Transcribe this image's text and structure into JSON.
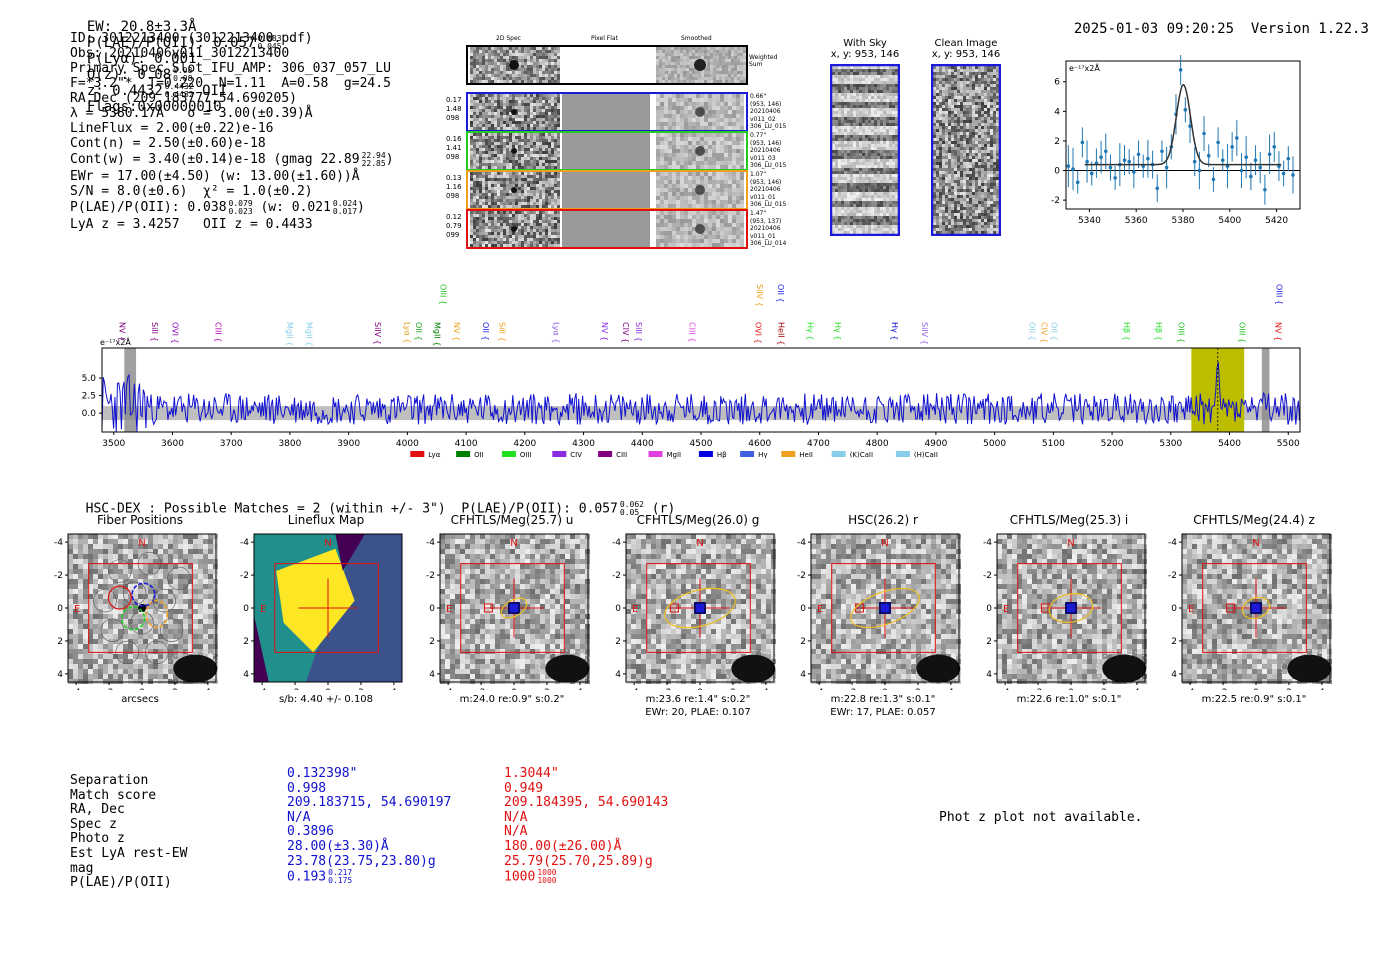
{
  "header": {
    "ew": "EW: 20.8±3.3Å",
    "plae_label": "P(LAE)/P(OII): 0.057",
    "plae_hi": "0.083",
    "plae_lo": "0.045",
    "plya": "P(Lyα): 0.001",
    "qz_label": "Q(z): 0.08",
    "qz_hi": "0.08",
    "qz_lo": "0.08",
    "z_label": "z: 0.4432",
    "z_hi": "0.4432",
    "z_lo": "0.4432",
    "z_line": "OII",
    "flags": "Flags:0x00000010",
    "datetime": "2025-01-03 09:20:25",
    "version": "Version 1.22.3"
  },
  "info": {
    "l1": "ID: 3012213400 (3012213400.pdf)",
    "l2": "Obs: 20210406v011_3012213400",
    "l3": "Primary Spec_Slot_IFU_AMP: 306_037_057_LU",
    "l4": "F=*3.2\"*  T=0.220  N=1.11  A=0.58  g=24.5",
    "l5": "RA,Dec (209.183777,54.690205)",
    "l6": "λ = 5380.17Å   σ = 3.00(±0.39)Å",
    "l7": "LineFlux = 2.00(±0.22)e-16",
    "l8": "Cont(n) = 2.50(±0.60)e-18",
    "l9": "Cont(w) = 3.40(±0.14)e-18 (gmag 22.89",
    "l9_hi": "22.94",
    "l9_lo": "22.85",
    "l9_end": ")",
    "l10": "EWr = 17.00(±4.50) (w: 13.00(±1.60))Å",
    "l11": "S/N = 8.0(±0.6)  χ² = 1.0(±0.2)",
    "l12": "P(LAE)/P(OII): 0.038",
    "l12_hi": "0.079",
    "l12_lo": "0.023",
    "l12_w": "(w: 0.021",
    "l12_whi": "0.024",
    "l12_wlo": "0.017",
    "l12_end": ")",
    "l13": "LyA z = 3.4257   OII z = 0.4433"
  },
  "cutouts": {
    "col_2d": "2D Spec",
    "col_flat": "Pixel Flat",
    "col_smooth": "Smoothed",
    "weighted": "Weighted Sum",
    "rows": [
      {
        "l": "0.17",
        "m": "1.48",
        "r": "098",
        "i1": "0.66\"",
        "i2": "(953, 146)",
        "i3": "20210406",
        "i4": "v011_02",
        "i5": "306_LU_015",
        "color": "#1a1ad8"
      },
      {
        "l": "0.16",
        "m": "1.41",
        "r": "098",
        "i1": "0.77\"",
        "i2": "(953, 146)",
        "i3": "20210406",
        "i4": "v011_03",
        "i5": "306_LU_015",
        "color": "#22cc22"
      },
      {
        "l": "0.13",
        "m": "1.16",
        "r": "098",
        "i1": "1.07\"",
        "i2": "(953, 146)",
        "i3": "20210406",
        "i4": "v011_01",
        "i5": "306_LU_015",
        "color": "#f0a020"
      },
      {
        "l": "0.12",
        "m": "0.79",
        "r": "099",
        "i1": "1.47\"",
        "i2": "(953, 137)",
        "i3": "20210406",
        "i4": "v011_01",
        "i5": "306_LU_014",
        "color": "#e01010"
      }
    ],
    "with_sky": "With Sky",
    "with_sky_xy": "x, y: 953, 146",
    "clean": "Clean Image",
    "clean_xy": "x, y: 953, 146"
  },
  "colors": {
    "blue": "#1010d0",
    "red": "#e01010",
    "olive": "#bdbd00",
    "gray_band": "#bfbfbf"
  },
  "chart_data": [
    {
      "type": "scatter",
      "title": "",
      "ylabel": "e⁻¹⁷x2Å",
      "xlim": [
        5330,
        5430
      ],
      "ylim": [
        -2.6,
        7.4
      ],
      "xticks": [
        5340,
        5360,
        5380,
        5400,
        5420
      ],
      "yticks": [
        -2,
        0,
        2,
        4,
        6
      ],
      "x": [
        5331,
        5333,
        5335,
        5337,
        5339,
        5341,
        5343,
        5345,
        5347,
        5349,
        5351,
        5353,
        5355,
        5357,
        5359,
        5361,
        5363,
        5365,
        5367,
        5369,
        5371,
        5373,
        5375,
        5377,
        5379,
        5381,
        5383,
        5385,
        5387,
        5389,
        5391,
        5393,
        5395,
        5397,
        5399,
        5401,
        5403,
        5405,
        5407,
        5409,
        5411,
        5413,
        5415,
        5417,
        5419,
        5421,
        5423,
        5425,
        5427
      ],
      "values": [
        0.3,
        0.1,
        -0.8,
        1.9,
        0.6,
        -0.2,
        0.5,
        0.9,
        1.3,
        0.2,
        -0.5,
        0.4,
        0.7,
        0.6,
        -0.1,
        1.1,
        0.3,
        0.8,
        0.4,
        -1.2,
        1.3,
        0.2,
        1.6,
        3.8,
        6.8,
        4.1,
        3.0,
        0.6,
        0.0,
        2.5,
        1.0,
        -0.6,
        1.9,
        0.7,
        0.3,
        1.6,
        2.2,
        0.0,
        0.9,
        -0.4,
        0.7,
        0.2,
        -1.3,
        1.1,
        1.6,
        0.3,
        -0.2,
        0.8,
        -0.3
      ],
      "fit": {
        "center": 5380.17,
        "sigma": 3.0,
        "amp": 5.4,
        "base": 0.4
      }
    },
    {
      "type": "line",
      "title": "",
      "ylabel": "e⁻¹⁷x2Å",
      "xlim": [
        3480,
        5520
      ],
      "ylim": [
        -2.7,
        9.3
      ],
      "xticks": [
        3500,
        3600,
        3700,
        3800,
        3900,
        4000,
        4100,
        4200,
        4300,
        4400,
        4500,
        4600,
        4700,
        4800,
        4900,
        5000,
        5100,
        5200,
        5300,
        5400,
        5500
      ],
      "yticks": [
        0.0,
        2.5,
        5.0
      ],
      "ytick_labels": [
        "0.0",
        "2.5",
        "5.0"
      ],
      "highlight": [
        5335,
        5425
      ],
      "peak_line": 5380,
      "hatched": [
        [
          3518,
          3538
        ],
        [
          5455,
          5468
        ]
      ],
      "line_markers": [
        {
          "label": "NV",
          "x": 3505,
          "c": "#800080",
          "row": 1
        },
        {
          "label": "SiII",
          "x": 3560,
          "c": "#800080",
          "row": 1
        },
        {
          "label": "OVI",
          "x": 3595,
          "c": "#9000c0",
          "row": 1
        },
        {
          "label": "CIII",
          "x": 3668,
          "c": "#b000b0",
          "row": 1
        },
        {
          "label": "MgII",
          "x": 3790,
          "c": "#87ceeb",
          "row": 1
        },
        {
          "label": "MgII",
          "x": 3823,
          "c": "#87ceeb",
          "row": 1
        },
        {
          "label": "SiIV",
          "x": 3940,
          "c": "#800080",
          "row": 1
        },
        {
          "label": "Lyα",
          "x": 3990,
          "c": "#e0a020",
          "row": 1
        },
        {
          "label": "OII",
          "x": 4010,
          "c": "#20a020",
          "row": 1
        },
        {
          "label": "MgII",
          "x": 4041,
          "c": "#008000",
          "row": 1
        },
        {
          "label": "OIII",
          "x": 4051,
          "c": "#20c020",
          "row": 0
        },
        {
          "label": "NV",
          "x": 4074,
          "c": "#f0a020",
          "row": 1
        },
        {
          "label": "OII",
          "x": 4124,
          "c": "#2020e0",
          "row": 1
        },
        {
          "label": "SiII",
          "x": 4152,
          "c": "#f0a020",
          "row": 1
        },
        {
          "label": "Lyα",
          "x": 4244,
          "c": "#9060e0",
          "row": 1
        },
        {
          "label": "NV",
          "x": 4326,
          "c": "#8a2be2",
          "row": 1
        },
        {
          "label": "CIV",
          "x": 4362,
          "c": "#800080",
          "row": 1
        },
        {
          "label": "SiII",
          "x": 4384,
          "c": "#8a2be2",
          "row": 1
        },
        {
          "label": "CIII",
          "x": 4475,
          "c": "#e040e0",
          "row": 1
        },
        {
          "label": "SiIV",
          "x": 4590,
          "c": "#f0a020",
          "row": 0
        },
        {
          "label": "OVI",
          "x": 4588,
          "c": "#e01010",
          "row": 1
        },
        {
          "label": "OII",
          "x": 4626,
          "c": "#2020e0",
          "row": 0
        },
        {
          "label": "HeII",
          "x": 4627,
          "c": "#a00000",
          "row": 1
        },
        {
          "label": "Hγ",
          "x": 4676,
          "c": "#20e020",
          "row": 1
        },
        {
          "label": "Hγ",
          "x": 4723,
          "c": "#20e020",
          "row": 1
        },
        {
          "label": "Hγ",
          "x": 4820,
          "c": "#0000c0",
          "row": 1
        },
        {
          "label": "SiIV",
          "x": 4871,
          "c": "#9060e0",
          "row": 1
        },
        {
          "label": "OII",
          "x": 5054,
          "c": "#87ceeb",
          "row": 1
        },
        {
          "label": "CIV",
          "x": 5075,
          "c": "#f0a020",
          "row": 1
        },
        {
          "label": "OII",
          "x": 5092,
          "c": "#87ceeb",
          "row": 1
        },
        {
          "label": "Hβ",
          "x": 5215,
          "c": "#20e020",
          "row": 1
        },
        {
          "label": "Hβ",
          "x": 5270,
          "c": "#20e020",
          "row": 1
        },
        {
          "label": "OIII",
          "x": 5308,
          "c": "#20c020",
          "row": 1
        },
        {
          "label": "OIII",
          "x": 5412,
          "c": "#20c020",
          "row": 1
        },
        {
          "label": "NV",
          "x": 5473,
          "c": "#e01010",
          "row": 1
        },
        {
          "label": "OIII",
          "x": 5475,
          "c": "#2020e0",
          "row": 0
        }
      ],
      "legend": [
        {
          "label": "Lyα",
          "c": "#e01010"
        },
        {
          "label": "OII",
          "c": "#008000"
        },
        {
          "label": "OIII",
          "c": "#20e020"
        },
        {
          "label": "CIV",
          "c": "#8a2be2"
        },
        {
          "label": "CIII",
          "c": "#800080"
        },
        {
          "label": "MgII",
          "c": "#e040e0"
        },
        {
          "label": "Hβ",
          "c": "#0000e0"
        },
        {
          "label": "Hγ",
          "c": "#4060e0"
        },
        {
          "label": "HeII",
          "c": "#f0a020"
        },
        {
          "label": "(K)CaII",
          "c": "#87ceeb"
        },
        {
          "label": "(H)CaII",
          "c": "#87ceeb"
        }
      ]
    }
  ],
  "hsc": {
    "title": "HSC-DEX : Possible Matches = 2 (within +/- 3\")  P(LAE)/P(OII): 0.057",
    "hi": "0.062",
    "lo": "0.05",
    "tail": "(r)"
  },
  "panels": [
    {
      "title": "Fiber Positions",
      "sub1": "arcsecs",
      "sub2": "",
      "kind": "fiber"
    },
    {
      "title": "Lineflux Map",
      "sub1": "s/b: 4.40 +/- 0.108",
      "sub2": "",
      "kind": "flux"
    },
    {
      "title": "CFHTLS/Meg(25.7) u",
      "sub1": "m:24.0  re:0.9\"  s:0.2\"",
      "sub2": "",
      "kind": "img",
      "ell": [
        14,
        8,
        -30
      ]
    },
    {
      "title": "CFHTLS/Meg(26.0) g",
      "sub1": "m:23.6  re:1.4\"  s:0.2\"",
      "sub2": "EWr: 20, PLAE: 0.107",
      "kind": "img",
      "ell": [
        36,
        18,
        -15
      ]
    },
    {
      "title": "HSC(26.2) r",
      "sub1": "m:22.8  re:1.3\"  s:0.1\"",
      "sub2": "EWr: 17, PLAE: 0.057",
      "kind": "img",
      "ell": [
        36,
        16,
        -20
      ]
    },
    {
      "title": "CFHTLS/Meg(25.3) i",
      "sub1": "m:22.6  re:1.0\"  s:0.1\"",
      "sub2": "",
      "kind": "img",
      "ell": [
        22,
        14,
        -10
      ]
    },
    {
      "title": "CFHTLS/Meg(24.4) z",
      "sub1": "m:22.5  re:0.9\"  s:0.1\"",
      "sub2": "",
      "kind": "img",
      "ell": [
        14,
        10,
        -20
      ]
    }
  ],
  "panel_axes": {
    "ticks": [
      "-4",
      "-2",
      "0",
      "2",
      "4"
    ],
    "north": "N",
    "east": "E"
  },
  "matches": {
    "labels": [
      "Separation",
      "Match score",
      "RA, Dec",
      "Spec z",
      "Photo z",
      "Est LyA rest-EW",
      "mag",
      "P(LAE)/P(OII)"
    ],
    "m1": [
      "0.132398\"",
      "0.998",
      "209.183715, 54.690197",
      "N/A",
      "0.3896",
      "28.00(±3.30)Å",
      "23.78(23.75,23.80)g",
      "0.193"
    ],
    "m1_hi": "0.217",
    "m1_lo": "0.175",
    "m2": [
      "1.3044\"",
      "0.949",
      "209.184395, 54.690143",
      "N/A",
      "N/A",
      "180.00(±26.00)Å",
      "25.79(25.70,25.89)g",
      "1000"
    ],
    "m2_hi": "1000",
    "m2_lo": "1000",
    "photz_note": "Phot z plot not available."
  }
}
